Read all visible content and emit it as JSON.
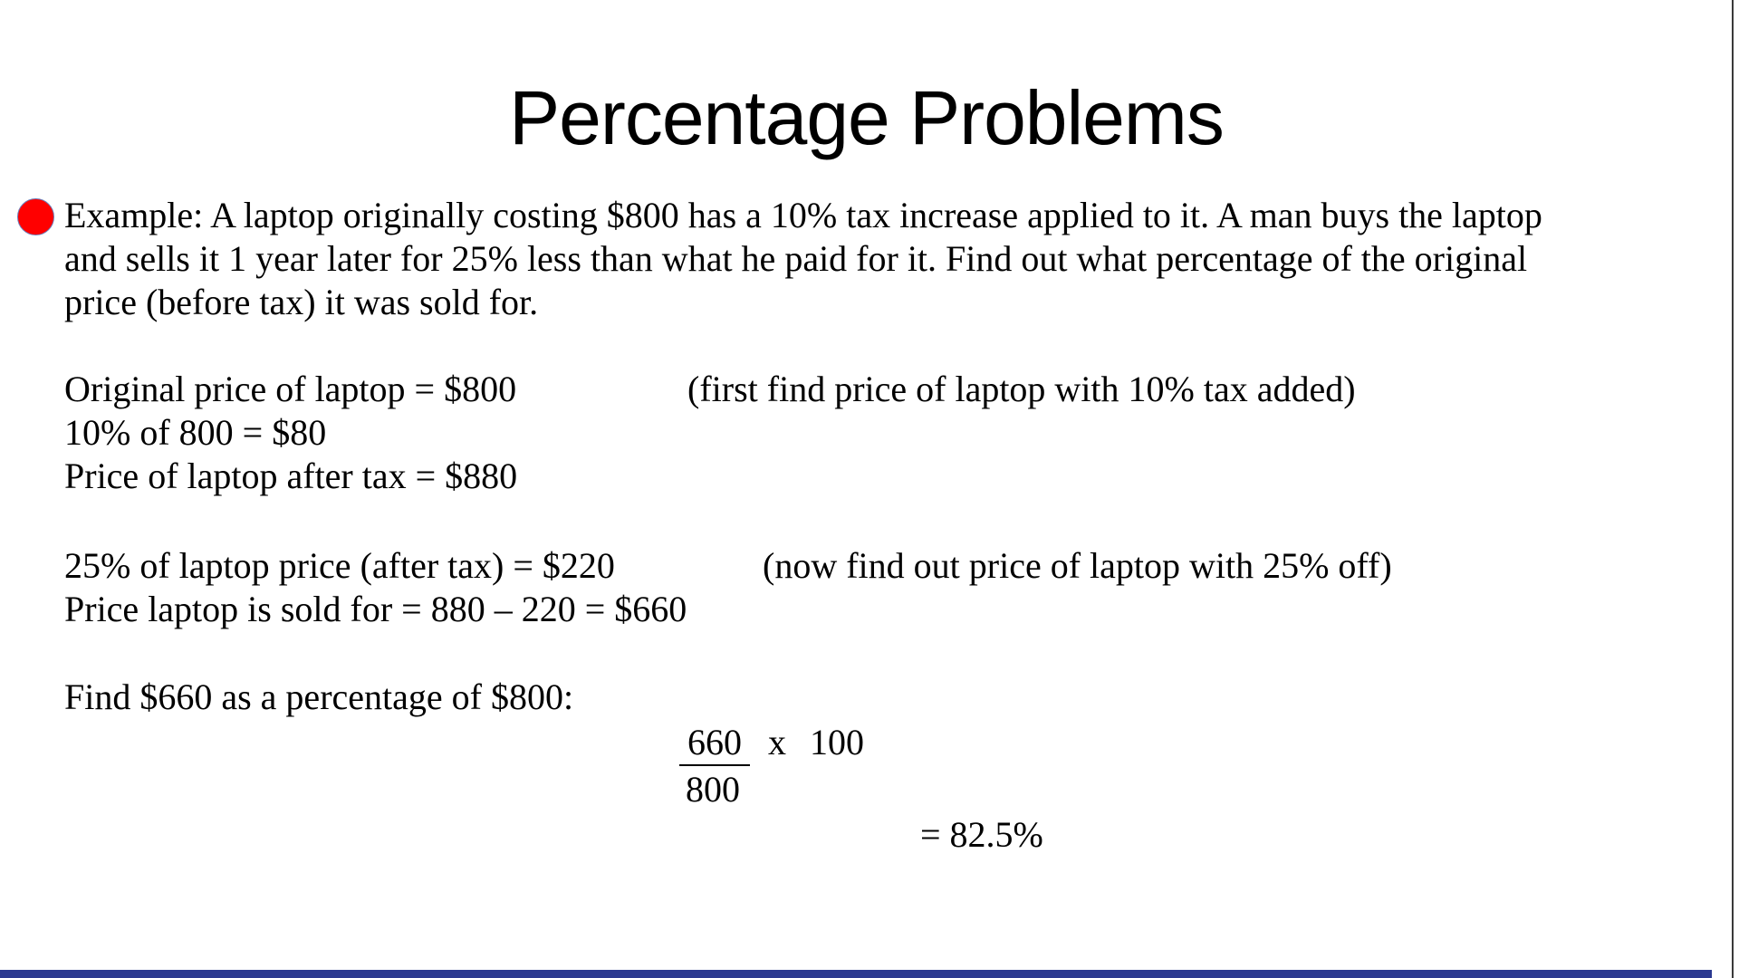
{
  "slide": {
    "title": "Percentage Problems",
    "colors": {
      "bullet": "#ff0000",
      "accent_bar": "#2B3990"
    },
    "example": {
      "lines": [
        "Example: A laptop originally costing $800 has a 10% tax increase applied to it. A man buys the laptop",
        "and sells it 1 year later for 25% less than what he paid for it. Find out what percentage of the original",
        "price (before tax) it was sold for."
      ]
    },
    "work_step1": {
      "line1": "Original price of laptop = $800",
      "line1_comment": "(first find price of laptop with 10% tax added)",
      "line2": "10% of 800 = $80",
      "line3": "Price of laptop after tax = $880"
    },
    "work_step2": {
      "line1": "25% of laptop price (after tax) = $220",
      "line1_comment": "(now find out price of laptop with 25% off)",
      "line2": "Price laptop is sold for = 880 – 220 = $660"
    },
    "work_step3": {
      "intro": "Find $660 as a percentage of $800:",
      "fraction_numerator": "660",
      "multiply_operator": "x",
      "multiplier": "100",
      "fraction_denominator": "800",
      "result": "= 82.5%"
    }
  }
}
